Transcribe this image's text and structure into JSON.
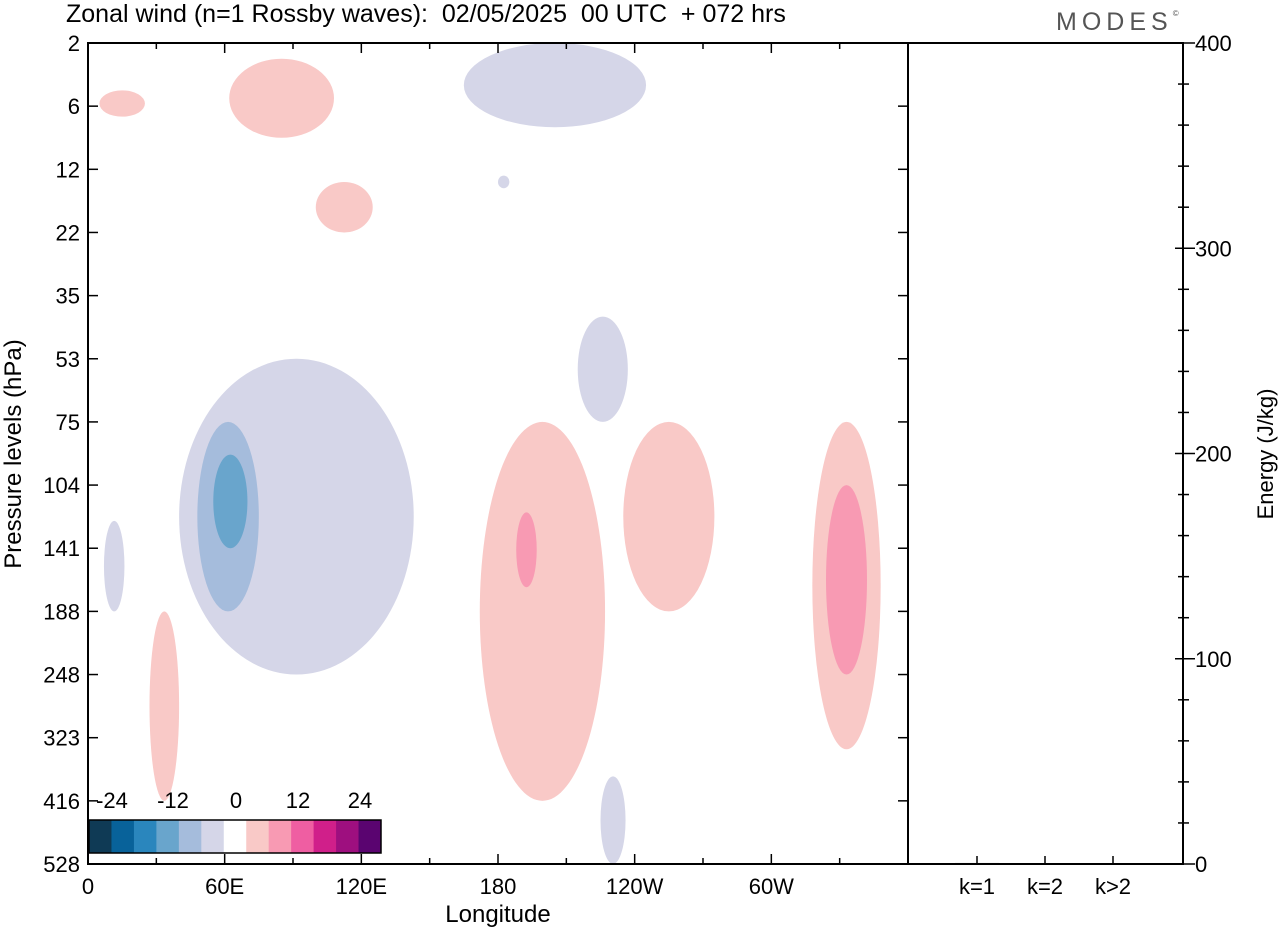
{
  "title": "Zonal wind (n=1 Rossby waves):  02/05/2025  00 UTC  + 072 hrs",
  "brand": "MODES",
  "brand_mark": "©",
  "chart_data": [
    {
      "type": "heatmap",
      "title": "Zonal wind (n=1 Rossby waves):  02/05/2025  00 UTC  + 072 hrs",
      "xlabel": "Longitude",
      "ylabel": "Pressure levels (hPa)",
      "x_ticks": [
        "0",
        "60E",
        "120E",
        "180",
        "120W",
        "60W"
      ],
      "x_tick_degrees": [
        0,
        60,
        120,
        180,
        240,
        300
      ],
      "xlim": [
        0,
        360
      ],
      "y_ticks": [
        "2",
        "6",
        "12",
        "22",
        "35",
        "53",
        "75",
        "104",
        "141",
        "188",
        "248",
        "323",
        "416",
        "528"
      ],
      "colorbar_labels": [
        "-24",
        "-12",
        "0",
        "12",
        "24"
      ],
      "colorbar_colors": [
        "#0f3a55",
        "#08629a",
        "#2a86bd",
        "#69a5cc",
        "#a5bcdc",
        "#d5d6e8",
        "#ffffff",
        "#f9c9c7",
        "#f89ab3",
        "#ef5ea2",
        "#d01f8a",
        "#9e0f7f",
        "#5a0470"
      ],
      "contour_regions": [
        {
          "sign": "positive",
          "level": 6,
          "lon": [
            5,
            25
          ],
          "level_range": [
            "5",
            "7"
          ]
        },
        {
          "sign": "positive",
          "level": 6,
          "lon": [
            62,
            108
          ],
          "level_range": [
            "3",
            "9"
          ]
        },
        {
          "sign": "positive",
          "level": 6,
          "lon": [
            100,
            125
          ],
          "level_range": [
            "14",
            "22"
          ]
        },
        {
          "sign": "negative",
          "level": -6,
          "lon": [
            165,
            245
          ],
          "level_range": [
            "2",
            "8"
          ]
        },
        {
          "sign": "negative",
          "level": -6,
          "lon": [
            180,
            185
          ],
          "level_range": [
            "13",
            "15"
          ]
        },
        {
          "sign": "negative",
          "level": -6,
          "lon": [
            215,
            237
          ],
          "level_range": [
            "41",
            "75"
          ]
        },
        {
          "sign": "negative",
          "level": -6,
          "lon": [
            40,
            143
          ],
          "level_range": [
            "53",
            "248"
          ]
        },
        {
          "sign": "negative",
          "level": -12,
          "lon": [
            48,
            75
          ],
          "level_range": [
            "75",
            "188"
          ]
        },
        {
          "sign": "negative",
          "level": -18,
          "lon": [
            55,
            70
          ],
          "level_range": [
            "90",
            "141"
          ]
        },
        {
          "sign": "negative",
          "level": -6,
          "lon": [
            7,
            16
          ],
          "level_range": [
            "125",
            "188"
          ]
        },
        {
          "sign": "negative",
          "level": -6,
          "lon": [
            225,
            236
          ],
          "level_range": [
            "380",
            "528"
          ]
        },
        {
          "sign": "positive",
          "level": 6,
          "lon": [
            27,
            40
          ],
          "level_range": [
            "188",
            "416"
          ]
        },
        {
          "sign": "positive",
          "level": 6,
          "lon": [
            172,
            227
          ],
          "level_range": [
            "75",
            "416"
          ]
        },
        {
          "sign": "positive",
          "level": 12,
          "lon": [
            188,
            197
          ],
          "level_range": [
            "120",
            "170"
          ]
        },
        {
          "sign": "positive",
          "level": 6,
          "lon": [
            235,
            275
          ],
          "level_range": [
            "75",
            "188"
          ]
        },
        {
          "sign": "positive",
          "level": 6,
          "lon": [
            318,
            348
          ],
          "level_range": [
            "75",
            "340"
          ]
        },
        {
          "sign": "positive",
          "level": 12,
          "lon": [
            324,
            342
          ],
          "level_range": [
            "104",
            "248"
          ]
        }
      ]
    },
    {
      "type": "bar",
      "categories": [
        "k=1",
        "k=2",
        "k>2"
      ],
      "values": [
        0.5,
        0.2,
        0.3
      ],
      "ylabel": "Energy (J/kg)",
      "ylim": [
        0,
        400
      ],
      "y_ticks": [
        0,
        100,
        200,
        300,
        400
      ]
    }
  ]
}
